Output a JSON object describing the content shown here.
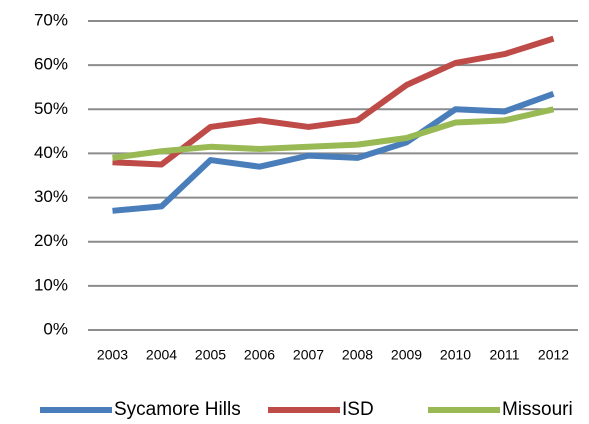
{
  "chart_data": {
    "type": "line",
    "categories": [
      "2003",
      "2004",
      "2005",
      "2006",
      "2007",
      "2008",
      "2009",
      "2010",
      "2011",
      "2012"
    ],
    "series": [
      {
        "name": "Sycamore Hills",
        "color": "#4a7ebb",
        "values": [
          27,
          28,
          38.5,
          37,
          39.5,
          39,
          42.5,
          50,
          49.5,
          53.5
        ]
      },
      {
        "name": "ISD",
        "color": "#be4b48",
        "values": [
          38,
          37.5,
          46,
          47.5,
          46,
          47.5,
          55.5,
          60.5,
          62.5,
          66
        ]
      },
      {
        "name": "Missouri",
        "color": "#98b954",
        "values": [
          39,
          40.5,
          41.5,
          41,
          41.5,
          42,
          43.5,
          47,
          47.5,
          50
        ]
      }
    ],
    "ylim": [
      0,
      70
    ],
    "yticks": [
      {
        "value": 0,
        "label": "0%"
      },
      {
        "value": 10,
        "label": "10%"
      },
      {
        "value": 20,
        "label": "20%"
      },
      {
        "value": 30,
        "label": "30%"
      },
      {
        "value": 40,
        "label": "40%"
      },
      {
        "value": 50,
        "label": "50%"
      },
      {
        "value": 60,
        "label": "60%"
      },
      {
        "value": 70,
        "label": "70%"
      }
    ],
    "grid": true,
    "legend": "bottom"
  }
}
